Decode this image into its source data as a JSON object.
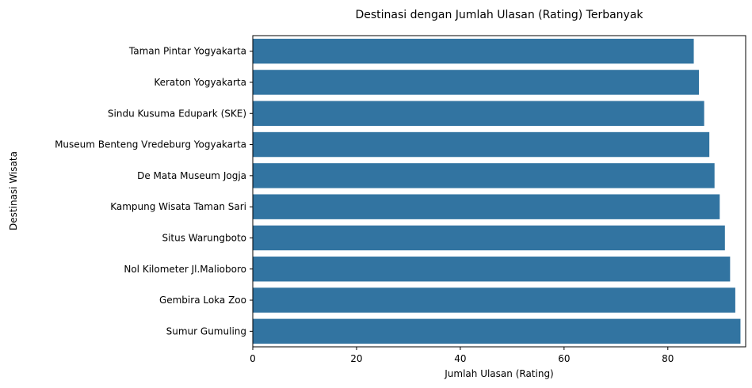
{
  "chart_data": {
    "type": "bar",
    "orientation": "horizontal",
    "title": "Destinasi dengan Jumlah Ulasan (Rating) Terbanyak",
    "xlabel": "Jumlah Ulasan (Rating)",
    "ylabel": "Destinasi Wisata",
    "categories": [
      "Taman Pintar Yogyakarta",
      "Keraton Yogyakarta",
      "Sindu Kusuma Edupark (SKE)",
      "Museum Benteng Vredeburg Yogyakarta",
      "De Mata Museum Jogja",
      "Kampung Wisata Taman Sari",
      "Situs Warungboto",
      "Nol Kilometer Jl.Malioboro",
      "Gembira Loka Zoo",
      "Sumur Gumuling"
    ],
    "values": [
      85,
      86,
      87,
      88,
      89,
      90,
      91,
      92,
      93,
      94
    ],
    "xlim": [
      0,
      95
    ],
    "xticks": [
      0,
      20,
      40,
      60,
      80
    ],
    "grid": false,
    "bar_color": "#3274a1"
  }
}
